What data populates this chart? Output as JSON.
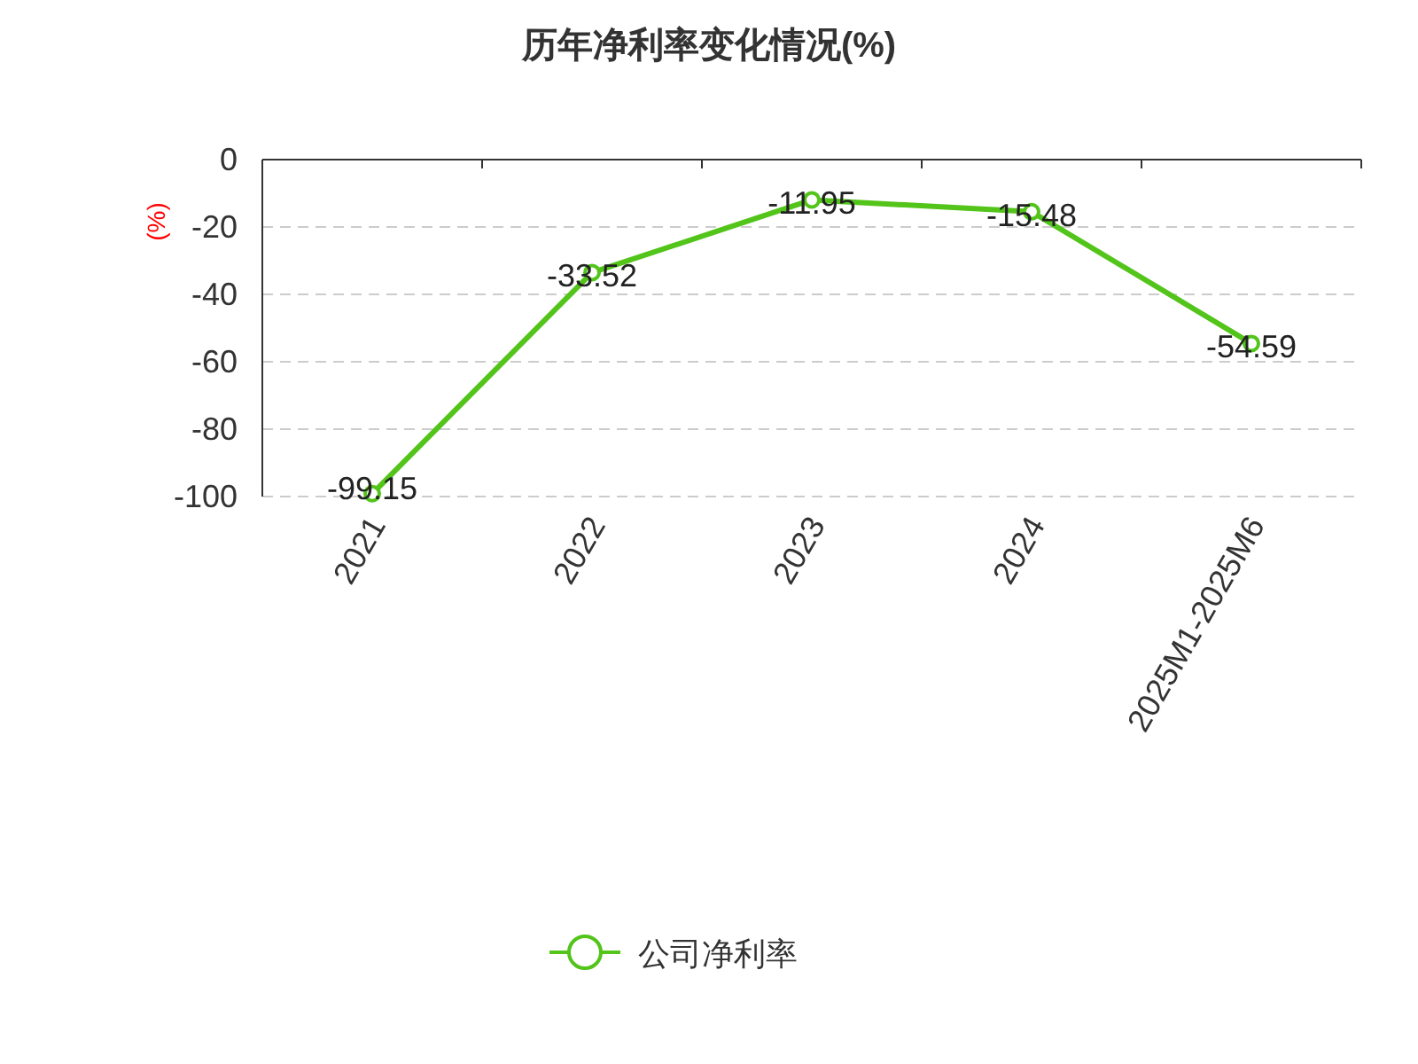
{
  "chart_data": {
    "type": "line",
    "title": "历年净利率变化情况(%)",
    "ylabel": "(%)",
    "categories": [
      "2021",
      "2022",
      "2023",
      "2024",
      "2025M1-2025M6"
    ],
    "series": [
      {
        "name": "公司净利率",
        "color": "#52c41a",
        "values": [
          -99.15,
          -33.52,
          -11.95,
          -15.48,
          -54.59
        ]
      }
    ],
    "ylim": [
      -100,
      0
    ],
    "yticks": [
      -100,
      -80,
      -60,
      -40,
      -20,
      0
    ],
    "grid": "y",
    "legend": "bottom",
    "marker": "circle",
    "line_style": "solid",
    "data_labels": true
  }
}
